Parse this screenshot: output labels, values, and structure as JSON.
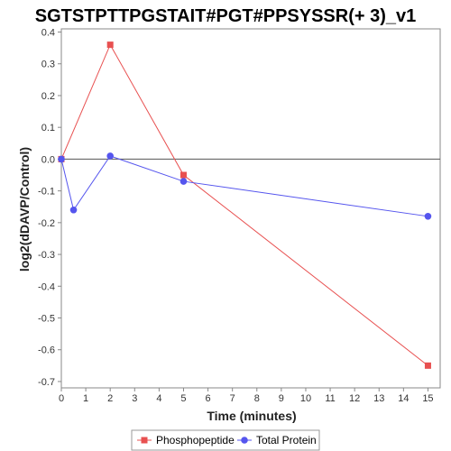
{
  "chart_data": {
    "type": "line",
    "title": "SGTSTPTTPGSTAIT#PGT#PPSYSSR(+ 3)_v1",
    "xlabel": "Time (minutes)",
    "ylabel": "log2(dDAVP/Control)",
    "xlim": [
      0,
      15.5
    ],
    "ylim": [
      -0.72,
      0.41
    ],
    "xticks": [
      0,
      1,
      2,
      3,
      4,
      5,
      6,
      7,
      8,
      9,
      10,
      11,
      12,
      13,
      14,
      15
    ],
    "yticks": [
      0.4,
      0.3,
      0.2,
      0.1,
      0.0,
      -0.1,
      -0.2,
      -0.3,
      -0.4,
      -0.5,
      -0.6,
      -0.7
    ],
    "ytick_labels": [
      "0.4",
      "0.3",
      "0.2",
      "0.1",
      "0.0",
      "-0.1",
      "-0.2",
      "-0.3",
      "-0.4",
      "-0.5",
      "-0.6",
      "-0.7"
    ],
    "zero_line": true,
    "grid": false,
    "legend_position": "bottom",
    "series": [
      {
        "name": "Phosphopeptide",
        "color": "#e85050",
        "marker": "square",
        "x": [
          0,
          2,
          5,
          15
        ],
        "y": [
          0.0,
          0.36,
          -0.05,
          -0.65
        ]
      },
      {
        "name": "Total Protein",
        "color": "#5555ee",
        "marker": "circle",
        "x": [
          0,
          0.5,
          2,
          5,
          15
        ],
        "y": [
          0.0,
          -0.16,
          0.01,
          -0.07,
          -0.18
        ]
      }
    ]
  }
}
